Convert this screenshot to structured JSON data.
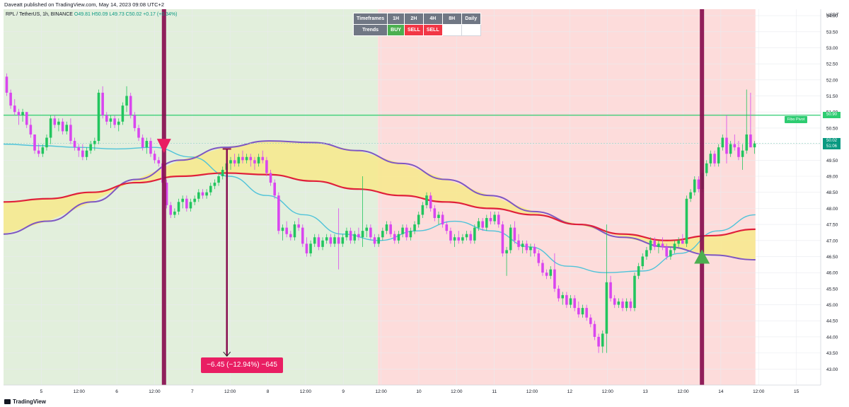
{
  "header": {
    "published_text": "Daveatt published on TradingView.com, May 14, 2023 09:08 UTC+2"
  },
  "symbol_line": {
    "text": "RPL / TetherUS, 1h, BINANCE",
    "ohlc": "O49.81  H50.09  L49.73  C50.02  +0.17 (+0.34%)"
  },
  "footer": {
    "brand": "TradingView"
  },
  "table": {
    "header_row": [
      "Timeframes",
      "1H",
      "2H",
      "4H",
      "8H",
      "Daily"
    ],
    "trend_label": "Trends",
    "trend_values": [
      "BUY",
      "SELL",
      "SELL",
      "",
      ""
    ]
  },
  "colors": {
    "bull_candle": "#22c55e",
    "bear_candle": "#d946ef",
    "ema_red": "#e0203a",
    "sma_purple": "#7e57c2",
    "ema_cyan": "#4fc3d9",
    "fill_yellow": "#f7e98b",
    "bg_green": "#e2efdc",
    "bg_red": "#fddcdb",
    "signal_bar": "#880e4f",
    "pivot_line": "#2ecc71",
    "measure": "#e91e63"
  },
  "annotations": {
    "measure_label": "−6.45 (−12.94%) −645",
    "pivot_label": "Fibo Pivot",
    "current_price": "50.02",
    "current_price_sub": "51:06",
    "pivot_price": "50.90"
  },
  "chart_data": {
    "type": "candlestick",
    "title": "RPL / TetherUS, 1h, BINANCE",
    "y_axis": {
      "label": "USDT",
      "ylim": [
        42.5,
        54.2
      ],
      "ticks": [
        "54.00",
        "53.50",
        "53.00",
        "52.50",
        "52.00",
        "51.50",
        "51.00",
        "50.50",
        "50.00",
        "49.50",
        "49.00",
        "48.50",
        "48.00",
        "47.50",
        "47.00",
        "46.50",
        "46.00",
        "45.50",
        "45.00",
        "44.50",
        "44.00",
        "43.50",
        "43.00"
      ]
    },
    "x_axis": {
      "ticks": [
        "5",
        "12:00",
        "6",
        "12:00",
        "7",
        "12:00",
        "8",
        "12:00",
        "9",
        "12:00",
        "10",
        "12:00",
        "11",
        "12:00",
        "12",
        "12:00",
        "13",
        "12:00",
        "14",
        "12:00",
        "15"
      ]
    },
    "x_range_hours": [
      0,
      244
    ],
    "candles_ohlc": [
      [
        52.1,
        52.2,
        51.5,
        51.6
      ],
      [
        51.6,
        51.7,
        51.1,
        51.2
      ],
      [
        51.2,
        51.4,
        50.9,
        51.0
      ],
      [
        51.0,
        51.1,
        50.6,
        50.9
      ],
      [
        50.9,
        51.1,
        50.7,
        51.0
      ],
      [
        51.0,
        51.0,
        50.5,
        50.6
      ],
      [
        50.6,
        50.8,
        50.2,
        50.3
      ],
      [
        50.3,
        50.3,
        49.7,
        49.8
      ],
      [
        49.8,
        50.0,
        49.6,
        49.7
      ],
      [
        49.7,
        50.0,
        49.6,
        49.9
      ],
      [
        49.9,
        50.3,
        49.8,
        50.2
      ],
      [
        50.2,
        50.9,
        50.0,
        50.8
      ],
      [
        50.8,
        50.9,
        50.5,
        50.6
      ],
      [
        50.6,
        50.8,
        50.4,
        50.7
      ],
      [
        50.7,
        50.8,
        50.3,
        50.4
      ],
      [
        50.4,
        50.7,
        50.3,
        50.6
      ],
      [
        50.6,
        50.8,
        50.0,
        50.1
      ],
      [
        50.1,
        50.2,
        49.8,
        49.9
      ],
      [
        49.9,
        50.0,
        49.6,
        49.8
      ],
      [
        49.8,
        50.0,
        49.5,
        49.6
      ],
      [
        49.6,
        49.9,
        49.5,
        49.8
      ],
      [
        49.8,
        50.1,
        49.7,
        50.0
      ],
      [
        50.0,
        50.2,
        49.8,
        50.1
      ],
      [
        50.1,
        51.7,
        50.0,
        51.6
      ],
      [
        51.6,
        51.8,
        50.8,
        50.9
      ],
      [
        50.9,
        51.0,
        50.6,
        50.7
      ],
      [
        50.7,
        50.9,
        50.5,
        50.8
      ],
      [
        50.8,
        50.9,
        50.5,
        50.6
      ],
      [
        50.6,
        50.8,
        50.4,
        50.7
      ],
      [
        50.7,
        51.3,
        50.6,
        51.2
      ],
      [
        51.2,
        51.8,
        51.0,
        51.5
      ],
      [
        51.5,
        51.6,
        50.8,
        50.9
      ],
      [
        50.9,
        51.0,
        50.4,
        50.5
      ],
      [
        50.5,
        50.6,
        50.1,
        50.2
      ],
      [
        50.2,
        50.3,
        49.8,
        49.9
      ],
      [
        49.9,
        50.2,
        49.7,
        50.1
      ],
      [
        50.1,
        50.2,
        49.6,
        49.7
      ],
      [
        49.7,
        49.8,
        49.4,
        49.5
      ],
      [
        49.5,
        49.6,
        49.3,
        49.4
      ],
      [
        49.4,
        49.5,
        48.7,
        48.8
      ],
      [
        48.8,
        48.9,
        48.0,
        48.1
      ],
      [
        48.1,
        48.2,
        47.7,
        47.8
      ],
      [
        47.8,
        48.0,
        47.7,
        47.9
      ],
      [
        47.9,
        48.3,
        47.8,
        48.2
      ],
      [
        48.2,
        48.4,
        48.0,
        48.3
      ],
      [
        48.3,
        48.4,
        47.9,
        48.0
      ],
      [
        48.0,
        48.3,
        47.9,
        48.2
      ],
      [
        48.2,
        48.4,
        48.1,
        48.3
      ],
      [
        48.3,
        48.6,
        48.2,
        48.5
      ],
      [
        48.5,
        48.6,
        48.3,
        48.4
      ],
      [
        48.4,
        48.6,
        48.3,
        48.5
      ],
      [
        48.5,
        48.8,
        48.4,
        48.7
      ],
      [
        48.7,
        48.9,
        48.6,
        48.8
      ],
      [
        48.8,
        49.1,
        48.7,
        49.0
      ],
      [
        49.0,
        49.3,
        48.9,
        49.2
      ],
      [
        49.2,
        49.5,
        49.1,
        49.4
      ],
      [
        49.4,
        49.6,
        49.2,
        49.5
      ],
      [
        49.5,
        49.7,
        49.3,
        49.4
      ],
      [
        49.4,
        49.7,
        49.3,
        49.6
      ],
      [
        49.6,
        49.8,
        49.4,
        49.5
      ],
      [
        49.5,
        49.7,
        49.4,
        49.6
      ],
      [
        49.6,
        49.7,
        49.3,
        49.5
      ],
      [
        49.5,
        49.6,
        49.2,
        49.4
      ],
      [
        49.4,
        49.7,
        49.3,
        49.6
      ],
      [
        49.6,
        49.8,
        49.4,
        49.5
      ],
      [
        49.5,
        49.6,
        49.0,
        49.1
      ],
      [
        49.1,
        49.2,
        48.7,
        48.8
      ],
      [
        48.8,
        48.9,
        48.3,
        48.4
      ],
      [
        48.4,
        48.5,
        47.2,
        47.3
      ],
      [
        47.3,
        47.5,
        47.0,
        47.4
      ],
      [
        47.4,
        47.6,
        47.1,
        47.2
      ],
      [
        47.2,
        47.3,
        47.0,
        47.1
      ],
      [
        47.1,
        47.6,
        47.0,
        47.5
      ],
      [
        47.5,
        47.7,
        47.3,
        47.4
      ],
      [
        47.4,
        47.5,
        46.8,
        46.9
      ],
      [
        46.9,
        47.1,
        46.5,
        46.6
      ],
      [
        46.6,
        47.0,
        46.5,
        46.9
      ],
      [
        46.9,
        47.2,
        46.8,
        47.1
      ],
      [
        47.1,
        47.2,
        46.7,
        46.8
      ],
      [
        46.8,
        47.1,
        46.7,
        47.0
      ],
      [
        47.0,
        47.2,
        46.9,
        47.1
      ],
      [
        47.1,
        47.2,
        46.8,
        46.9
      ],
      [
        46.9,
        47.2,
        46.8,
        47.1
      ],
      [
        47.1,
        48.0,
        46.1,
        46.9
      ],
      [
        46.9,
        47.2,
        46.8,
        47.1
      ],
      [
        47.1,
        47.4,
        47.0,
        47.3
      ],
      [
        47.3,
        47.4,
        46.9,
        47.0
      ],
      [
        47.0,
        47.3,
        46.9,
        47.2
      ],
      [
        47.2,
        47.4,
        47.0,
        47.1
      ],
      [
        47.1,
        49.0,
        46.8,
        47.3
      ],
      [
        47.3,
        47.5,
        47.1,
        47.4
      ],
      [
        47.4,
        47.5,
        47.0,
        47.1
      ],
      [
        47.1,
        47.2,
        46.8,
        46.9
      ],
      [
        46.9,
        47.2,
        46.8,
        47.1
      ],
      [
        47.1,
        47.4,
        47.0,
        47.3
      ],
      [
        47.3,
        47.6,
        47.2,
        47.5
      ],
      [
        47.5,
        47.6,
        47.1,
        47.2
      ],
      [
        47.2,
        47.3,
        46.9,
        47.0
      ],
      [
        47.0,
        47.3,
        46.9,
        47.2
      ],
      [
        47.2,
        47.5,
        47.1,
        47.4
      ],
      [
        47.4,
        47.5,
        47.0,
        47.1
      ],
      [
        47.1,
        47.4,
        47.0,
        47.3
      ],
      [
        47.3,
        47.6,
        47.2,
        47.5
      ],
      [
        47.5,
        47.9,
        47.4,
        47.8
      ],
      [
        47.8,
        48.2,
        47.7,
        48.1
      ],
      [
        48.1,
        48.5,
        48.0,
        48.4
      ],
      [
        48.4,
        48.5,
        47.9,
        48.0
      ],
      [
        48.0,
        48.1,
        47.6,
        47.7
      ],
      [
        47.7,
        47.9,
        47.5,
        47.8
      ],
      [
        47.8,
        47.9,
        47.4,
        47.5
      ],
      [
        47.5,
        47.6,
        47.2,
        47.3
      ],
      [
        47.3,
        47.4,
        46.9,
        47.0
      ],
      [
        47.0,
        47.2,
        46.8,
        47.1
      ],
      [
        47.1,
        47.3,
        46.9,
        47.0
      ],
      [
        47.0,
        47.2,
        46.9,
        47.1
      ],
      [
        47.1,
        47.3,
        47.0,
        47.2
      ],
      [
        47.2,
        47.3,
        46.9,
        47.0
      ],
      [
        47.0,
        47.5,
        46.9,
        47.4
      ],
      [
        47.4,
        47.7,
        47.3,
        47.6
      ],
      [
        47.6,
        47.7,
        47.3,
        47.4
      ],
      [
        47.4,
        47.8,
        47.3,
        47.7
      ],
      [
        47.7,
        47.9,
        47.5,
        47.6
      ],
      [
        47.6,
        47.9,
        47.5,
        47.8
      ],
      [
        47.8,
        47.9,
        47.4,
        47.5
      ],
      [
        47.5,
        47.6,
        46.5,
        46.6
      ],
      [
        46.6,
        46.8,
        45.9,
        46.7
      ],
      [
        46.7,
        47.5,
        46.6,
        47.4
      ],
      [
        47.4,
        47.6,
        46.9,
        47.0
      ],
      [
        47.0,
        47.2,
        46.7,
        46.8
      ],
      [
        46.8,
        47.0,
        46.6,
        46.9
      ],
      [
        46.9,
        47.0,
        46.6,
        46.7
      ],
      [
        46.7,
        46.9,
        46.5,
        46.8
      ],
      [
        46.8,
        46.9,
        46.5,
        46.6
      ],
      [
        46.6,
        46.7,
        46.2,
        46.3
      ],
      [
        46.3,
        46.4,
        45.9,
        46.0
      ],
      [
        46.0,
        46.1,
        45.8,
        45.9
      ],
      [
        45.9,
        46.2,
        45.8,
        46.1
      ],
      [
        46.1,
        46.6,
        45.4,
        45.5
      ],
      [
        45.5,
        45.6,
        45.1,
        45.2
      ],
      [
        45.2,
        45.4,
        45.0,
        45.3
      ],
      [
        45.3,
        45.4,
        44.9,
        45.0
      ],
      [
        45.0,
        45.3,
        44.9,
        45.2
      ],
      [
        45.2,
        45.3,
        44.8,
        44.9
      ],
      [
        44.9,
        45.1,
        44.6,
        44.7
      ],
      [
        44.7,
        45.0,
        44.6,
        44.9
      ],
      [
        44.9,
        45.0,
        44.5,
        44.6
      ],
      [
        44.6,
        44.7,
        44.3,
        44.4
      ],
      [
        44.4,
        44.5,
        43.9,
        44.0
      ],
      [
        44.0,
        44.1,
        43.5,
        43.7
      ],
      [
        43.7,
        44.2,
        43.5,
        44.1
      ],
      [
        44.1,
        47.5,
        43.5,
        45.7
      ],
      [
        45.7,
        45.9,
        45.1,
        45.2
      ],
      [
        45.2,
        45.3,
        44.9,
        45.0
      ],
      [
        45.0,
        45.2,
        44.9,
        45.1
      ],
      [
        45.1,
        45.2,
        44.8,
        44.9
      ],
      [
        44.9,
        45.2,
        44.8,
        45.1
      ],
      [
        45.1,
        45.2,
        44.8,
        44.9
      ],
      [
        44.9,
        46.0,
        44.8,
        45.9
      ],
      [
        45.9,
        46.3,
        45.8,
        46.2
      ],
      [
        46.2,
        46.6,
        46.1,
        46.5
      ],
      [
        46.5,
        46.8,
        46.4,
        46.7
      ],
      [
        46.7,
        47.1,
        46.6,
        47.0
      ],
      [
        47.0,
        47.1,
        46.7,
        46.8
      ],
      [
        46.8,
        47.0,
        46.6,
        46.9
      ],
      [
        46.9,
        47.1,
        46.7,
        46.8
      ],
      [
        46.8,
        46.9,
        46.4,
        46.5
      ],
      [
        46.5,
        46.8,
        46.4,
        46.7
      ],
      [
        46.7,
        47.0,
        46.6,
        46.9
      ],
      [
        46.9,
        47.1,
        46.8,
        47.0
      ],
      [
        47.0,
        47.2,
        46.9,
        46.9
      ],
      [
        46.9,
        48.4,
        46.8,
        48.3
      ],
      [
        48.3,
        48.6,
        48.2,
        48.5
      ],
      [
        48.5,
        49.0,
        48.4,
        48.9
      ],
      [
        48.9,
        49.0,
        48.5,
        48.6
      ],
      [
        48.6,
        49.2,
        48.5,
        49.1
      ],
      [
        49.1,
        49.5,
        49.0,
        49.4
      ],
      [
        49.4,
        49.8,
        49.3,
        49.7
      ],
      [
        49.7,
        49.8,
        49.3,
        49.4
      ],
      [
        49.4,
        50.0,
        49.3,
        49.9
      ],
      [
        49.9,
        50.3,
        49.8,
        50.2
      ],
      [
        50.2,
        50.9,
        49.4,
        49.7
      ],
      [
        49.7,
        50.1,
        49.6,
        50.0
      ],
      [
        50.0,
        50.3,
        49.8,
        49.9
      ],
      [
        49.9,
        50.1,
        49.5,
        49.6
      ],
      [
        49.6,
        50.0,
        49.2,
        49.8
      ],
      [
        49.8,
        51.7,
        49.7,
        50.3
      ],
      [
        50.3,
        51.6,
        49.9,
        49.9
      ],
      [
        49.9,
        50.1,
        49.7,
        50.02
      ]
    ],
    "indicators": {
      "ema_red_levels": [
        48.2,
        48.3,
        48.5,
        48.8,
        49.0,
        49.1,
        49.05,
        48.85,
        48.6,
        48.4,
        48.2,
        48.0,
        47.8,
        47.5,
        47.2,
        47.0,
        47.15,
        47.35
      ],
      "sma_purple_levels": [
        47.2,
        47.6,
        48.2,
        48.9,
        49.5,
        49.9,
        50.1,
        50.05,
        49.8,
        49.4,
        48.9,
        48.4,
        47.9,
        47.5,
        47.1,
        46.8,
        46.55,
        46.4
      ],
      "ema_cyan_levels": [
        50.0,
        49.95,
        49.9,
        49.85,
        49.9,
        49.6,
        49.0,
        48.4,
        47.8,
        47.2,
        47.0,
        47.3,
        47.6,
        47.3,
        46.8,
        46.2,
        46.0,
        46.05,
        46.6,
        47.3,
        47.8
      ]
    },
    "horizontal_levels": {
      "fibo_pivot": 50.9,
      "current_price": 50.02
    },
    "signals": [
      {
        "type": "sell",
        "hour": 51,
        "price": 49.9
      },
      {
        "type": "buy",
        "hour": 222,
        "price": 46.5
      }
    ],
    "measure": {
      "from_price": 49.85,
      "to_price": 43.4,
      "change": "−6.45 (−12.94%) −645"
    },
    "background_zones": [
      {
        "from_hour": 0,
        "to_hour": 119,
        "color": "green"
      },
      {
        "from_hour": 119,
        "to_hour": 239,
        "color": "red"
      }
    ]
  }
}
